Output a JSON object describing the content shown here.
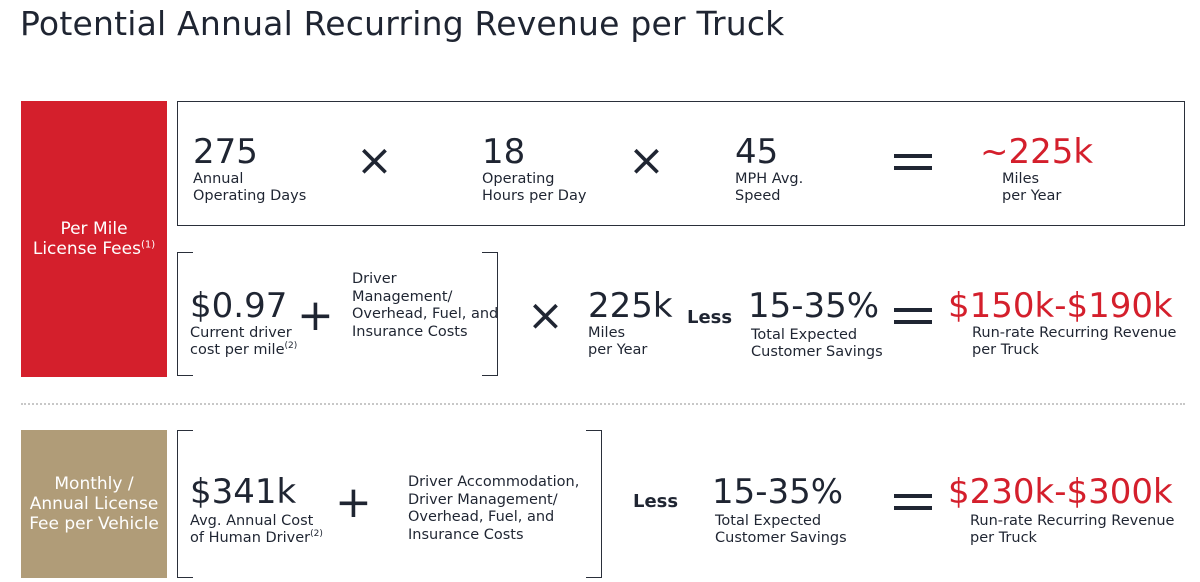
{
  "title": "Potential Annual Recurring Revenue per Truck",
  "colors": {
    "accent_red": "#d41f2c",
    "gold": "#b09c78",
    "text": "#1f2532"
  },
  "section1": {
    "side_label_line1": "Per Mile",
    "side_label_line2": "License Fees",
    "side_note": "(1)",
    "row1": {
      "item1": {
        "value": "275",
        "label_line1": "Annual",
        "label_line2": "Operating Days"
      },
      "op1": "×",
      "item2": {
        "value": "18",
        "label_line1": "Operating",
        "label_line2": "Hours per Day"
      },
      "op2": "×",
      "item3": {
        "value": "45",
        "label_line1": "MPH Avg.",
        "label_line2": "Speed"
      },
      "result": {
        "value": "~225k",
        "label_line1": "Miles",
        "label_line2": "per Year"
      }
    },
    "row2": {
      "item1": {
        "value": "$0.97",
        "label_line1": "Current driver",
        "label_line2": "cost per mile",
        "note": "(2)"
      },
      "op1": "+",
      "addon": {
        "line1": "Driver",
        "line2": "Management/",
        "line3": "Overhead, Fuel, and",
        "line4": "Insurance Costs"
      },
      "op2": "×",
      "item2": {
        "value": "225k",
        "label_line1": "Miles",
        "label_line2": "per Year"
      },
      "less": "Less",
      "item3": {
        "value": "15-35%",
        "label_line1": "Total Expected",
        "label_line2": "Customer Savings"
      },
      "result": {
        "value": "$150k-$190k",
        "label_line1": "Run-rate Recurring Revenue",
        "label_line2": "per Truck"
      }
    }
  },
  "section2": {
    "side_label_line1": "Monthly /",
    "side_label_line2": "Annual License",
    "side_label_line3": "Fee per Vehicle",
    "item1": {
      "value": "$341k",
      "label_line1": "Avg. Annual Cost",
      "label_line2": "of Human Driver",
      "note": "(2)"
    },
    "op1": "+",
    "addon": {
      "line1": "Driver Accommodation,",
      "line2": "Driver Management/",
      "line3": "Overhead, Fuel, and",
      "line4": "Insurance Costs"
    },
    "less": "Less",
    "item2": {
      "value": "15-35%",
      "label_line1": "Total Expected",
      "label_line2": "Customer Savings"
    },
    "result": {
      "value": "$230k-$300k",
      "label_line1": "Run-rate Recurring Revenue",
      "label_line2": "per Truck"
    }
  }
}
